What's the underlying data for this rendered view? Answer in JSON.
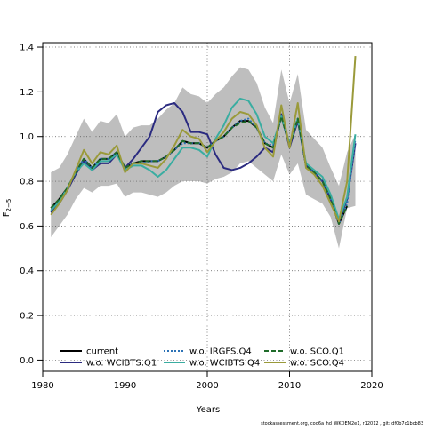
{
  "chart_data": {
    "type": "line",
    "title": "",
    "xlabel": "Years",
    "ylabel": "F",
    "ylabel_subscript": "2−5",
    "xlim": [
      1980,
      2020
    ],
    "ylim": [
      -0.05,
      1.42
    ],
    "x_ticks": [
      1980,
      1990,
      2000,
      2010,
      2020
    ],
    "y_ticks": [
      0.0,
      0.2,
      0.4,
      0.6,
      0.8,
      1.0,
      1.2,
      1.4
    ],
    "x_tick_labels": [
      "1980",
      "1990",
      "2000",
      "2010",
      "2020"
    ],
    "y_tick_labels": [
      "0.0",
      "0.2",
      "0.4",
      "0.6",
      "0.8",
      "1.0",
      "1.2",
      "1.4"
    ],
    "grid": "dotted",
    "legend_position": "bottom-left",
    "footnote": "stockassessment.org, cod6a_hd_WKDEM2e1, r12012 , git: df0b7c1bcb83",
    "x": [
      1981,
      1982,
      1983,
      1984,
      1985,
      1986,
      1987,
      1988,
      1989,
      1990,
      1991,
      1992,
      1993,
      1994,
      1995,
      1996,
      1997,
      1998,
      1999,
      2000,
      2001,
      2002,
      2003,
      2004,
      2005,
      2006,
      2007,
      2008,
      2009,
      2010,
      2011,
      2012,
      2013,
      2014,
      2015,
      2016,
      2017,
      2018
    ],
    "confidence_band": {
      "lower": [
        0.55,
        0.6,
        0.65,
        0.72,
        0.77,
        0.75,
        0.78,
        0.78,
        0.79,
        0.73,
        0.75,
        0.75,
        0.74,
        0.73,
        0.75,
        0.78,
        0.8,
        0.8,
        0.8,
        0.79,
        0.81,
        0.82,
        0.84,
        0.88,
        0.89,
        0.86,
        0.83,
        0.8,
        0.92,
        0.83,
        0.88,
        0.74,
        0.72,
        0.7,
        0.64,
        0.5,
        0.68,
        0.69
      ],
      "upper": [
        0.84,
        0.86,
        0.92,
        1.0,
        1.08,
        1.02,
        1.07,
        1.06,
        1.1,
        1.0,
        1.04,
        1.05,
        1.05,
        1.08,
        1.12,
        1.15,
        1.22,
        1.19,
        1.18,
        1.15,
        1.19,
        1.22,
        1.27,
        1.31,
        1.3,
        1.24,
        1.13,
        1.06,
        1.3,
        1.15,
        1.28,
        1.03,
        0.99,
        0.95,
        0.86,
        0.78,
        0.93,
        1.01
      ]
    },
    "series": [
      {
        "name": "current",
        "color": "#000000",
        "dash": "solid",
        "values": [
          0.68,
          0.72,
          0.77,
          0.84,
          0.9,
          0.86,
          0.9,
          0.9,
          0.93,
          0.86,
          0.88,
          0.89,
          0.89,
          0.89,
          0.91,
          0.94,
          0.98,
          0.97,
          0.97,
          0.95,
          0.98,
          1.0,
          1.04,
          1.07,
          1.07,
          1.04,
          0.97,
          0.95,
          1.09,
          0.96,
          1.08,
          0.87,
          0.84,
          0.8,
          0.72,
          0.61,
          0.69,
          null
        ]
      },
      {
        "name": "w.o. WCIBTS.Q1",
        "color": "#2b2b80",
        "dash": "solid",
        "values": [
          0.66,
          0.7,
          0.76,
          0.83,
          0.89,
          0.85,
          0.88,
          0.88,
          0.92,
          0.86,
          0.9,
          0.95,
          1.0,
          1.11,
          1.14,
          1.15,
          1.11,
          1.02,
          1.02,
          1.01,
          0.92,
          0.86,
          0.85,
          0.86,
          0.88,
          0.91,
          0.95,
          0.93,
          1.1,
          0.95,
          1.07,
          0.87,
          0.84,
          0.8,
          0.72,
          0.62,
          0.72,
          0.97
        ]
      },
      {
        "name": "w.o. IRGFS.Q4",
        "color": "#2c72b6",
        "dash": "dotted",
        "values": [
          0.67,
          0.71,
          0.77,
          0.84,
          0.9,
          0.86,
          0.9,
          0.9,
          0.93,
          0.86,
          0.88,
          0.88,
          0.89,
          0.89,
          0.91,
          0.94,
          0.97,
          0.97,
          0.97,
          0.95,
          0.98,
          1.0,
          1.04,
          1.07,
          1.08,
          1.04,
          0.97,
          0.96,
          1.09,
          0.96,
          1.08,
          0.87,
          0.84,
          0.8,
          0.72,
          0.61,
          0.7,
          0.99
        ]
      },
      {
        "name": "w.o. WCIBTS.Q4",
        "color": "#3aada1",
        "dash": "solid",
        "values": [
          0.67,
          0.71,
          0.77,
          0.84,
          0.88,
          0.85,
          0.89,
          0.89,
          0.92,
          0.85,
          0.87,
          0.87,
          0.85,
          0.82,
          0.85,
          0.9,
          0.95,
          0.95,
          0.94,
          0.91,
          0.99,
          1.05,
          1.13,
          1.17,
          1.16,
          1.1,
          1.0,
          0.97,
          1.09,
          0.97,
          1.08,
          0.88,
          0.85,
          0.82,
          0.74,
          0.63,
          0.73,
          1.01
        ]
      },
      {
        "name": "w.o. SCO.Q1",
        "color": "#1f6b2a",
        "dash": "dashed",
        "values": [
          0.68,
          0.72,
          0.77,
          0.84,
          0.9,
          0.86,
          0.9,
          0.9,
          0.93,
          0.86,
          0.88,
          0.89,
          0.89,
          0.89,
          0.91,
          0.94,
          0.98,
          0.97,
          0.97,
          0.95,
          0.98,
          1.0,
          1.04,
          1.06,
          1.07,
          1.04,
          0.97,
          0.95,
          1.09,
          0.96,
          1.08,
          0.87,
          0.84,
          0.8,
          0.72,
          0.61,
          0.69,
          null
        ]
      },
      {
        "name": "w.o. SCO.Q4",
        "color": "#9a9a3a",
        "dash": "solid",
        "values": [
          0.65,
          0.7,
          0.76,
          0.85,
          0.94,
          0.88,
          0.93,
          0.92,
          0.96,
          0.84,
          0.88,
          0.88,
          0.87,
          0.86,
          0.9,
          0.96,
          1.03,
          1.0,
          0.99,
          0.93,
          0.98,
          1.02,
          1.08,
          1.11,
          1.1,
          1.05,
          0.95,
          0.91,
          1.14,
          0.95,
          1.15,
          0.86,
          0.83,
          0.78,
          0.7,
          0.62,
          0.8,
          1.36
        ]
      }
    ]
  }
}
